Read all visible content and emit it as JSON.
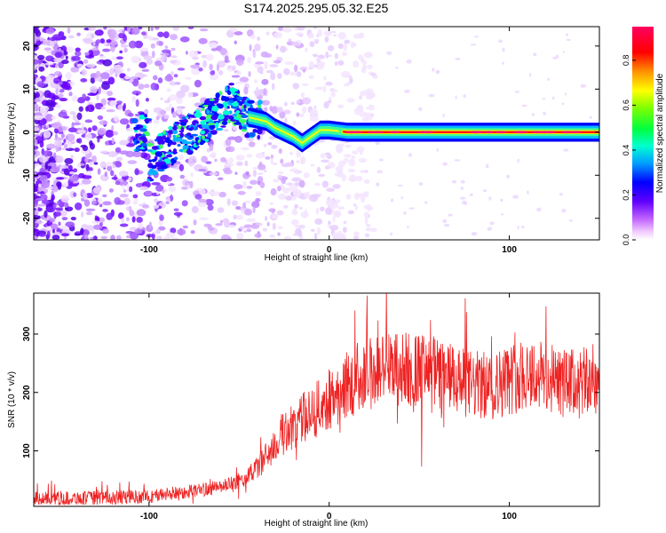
{
  "title": "S174.2025.295.05.32.E25",
  "chart_data": [
    {
      "type": "heatmap",
      "name": "spectrogram",
      "xlabel": "Height of straight line (km)",
      "ylabel": "Frequency (Hz)",
      "xlim": [
        -164,
        150
      ],
      "ylim": [
        -25,
        24.5
      ],
      "x_ticks": [
        -100,
        0,
        100
      ],
      "y_ticks": [
        -20,
        -10,
        0,
        10,
        20
      ],
      "colorbar": {
        "label": "Normalized spectral amplitude",
        "range": [
          0,
          0.95
        ],
        "ticks": [
          "0.0",
          "0.2",
          "0.4",
          "0.6",
          "0.8"
        ],
        "colormap": [
          "#ffffff",
          "#e8d0ff",
          "#c080ff",
          "#8000ff",
          "#0000ff",
          "#00c0ff",
          "#00ff80",
          "#80ff00",
          "#ffff00",
          "#ff8000",
          "#ff0000",
          "#ff0080"
        ]
      },
      "ridge": [
        {
          "x": -100,
          "f": -7
        },
        {
          "x": -90,
          "f": -4
        },
        {
          "x": -80,
          "f": -1
        },
        {
          "x": -70,
          "f": 2
        },
        {
          "x": -60,
          "f": 5
        },
        {
          "x": -55,
          "f": 7
        },
        {
          "x": -45,
          "f": 3.5
        },
        {
          "x": -40,
          "f": 3
        },
        {
          "x": -35,
          "f": 2.5
        },
        {
          "x": -30,
          "f": 1
        },
        {
          "x": -25,
          "f": 0
        },
        {
          "x": -20,
          "f": -1
        },
        {
          "x": -15,
          "f": -2.5
        },
        {
          "x": -10,
          "f": -1
        },
        {
          "x": -5,
          "f": 0.5
        },
        {
          "x": 0,
          "f": 0.5
        },
        {
          "x": 10,
          "f": 0
        },
        {
          "x": 150,
          "f": 0
        }
      ]
    },
    {
      "type": "line",
      "name": "snr",
      "xlabel": "Height of straight line (km)",
      "ylabel": "SNR (10 * v/v)",
      "xlim": [
        -164,
        150
      ],
      "ylim": [
        5,
        370
      ],
      "x_ticks": [
        -100,
        0,
        100
      ],
      "y_ticks": [
        100,
        200,
        300
      ],
      "series_color": "#ee2222",
      "envelope": [
        {
          "x": -164,
          "mean": 18
        },
        {
          "x": -120,
          "mean": 20
        },
        {
          "x": -100,
          "mean": 22
        },
        {
          "x": -80,
          "mean": 30
        },
        {
          "x": -60,
          "mean": 38
        },
        {
          "x": -45,
          "mean": 55
        },
        {
          "x": -35,
          "mean": 90
        },
        {
          "x": -25,
          "mean": 130
        },
        {
          "x": -15,
          "mean": 155
        },
        {
          "x": -5,
          "mean": 175
        },
        {
          "x": 5,
          "mean": 200
        },
        {
          "x": 15,
          "mean": 225
        },
        {
          "x": 30,
          "mean": 240
        },
        {
          "x": 45,
          "mean": 240
        },
        {
          "x": 60,
          "mean": 230
        },
        {
          "x": 75,
          "mean": 215
        },
        {
          "x": 90,
          "mean": 210
        },
        {
          "x": 110,
          "mean": 235
        },
        {
          "x": 130,
          "mean": 215
        },
        {
          "x": 150,
          "mean": 218
        }
      ]
    }
  ]
}
